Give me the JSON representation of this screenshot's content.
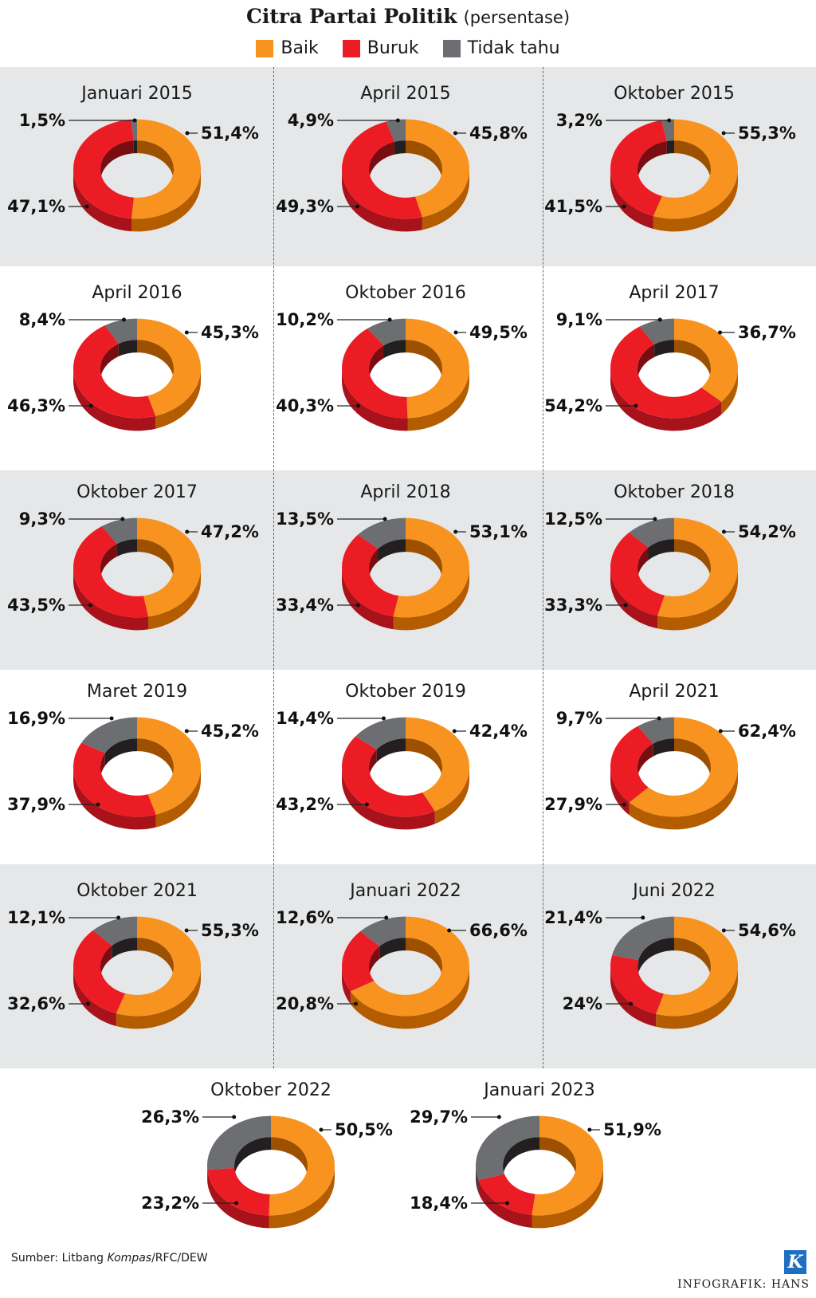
{
  "header": {
    "title": "Citra Partai Politik",
    "subtitle": "(persentase)"
  },
  "legend": [
    {
      "label": "Baik",
      "color": "#f7931e"
    },
    {
      "label": "Buruk",
      "color": "#ec1c24"
    },
    {
      "label": "Tidak tahu",
      "color": "#6d6e71"
    }
  ],
  "chart_data": [
    {
      "type": "pie",
      "title": "Januari 2015",
      "categories": [
        "Baik",
        "Buruk",
        "Tidak tahu"
      ],
      "values": [
        51.4,
        47.1,
        1.5
      ],
      "labels": [
        "51,4%",
        "47,1%",
        "1,5%"
      ]
    },
    {
      "type": "pie",
      "title": "April 2015",
      "categories": [
        "Baik",
        "Buruk",
        "Tidak tahu"
      ],
      "values": [
        45.8,
        49.3,
        4.9
      ],
      "labels": [
        "45,8%",
        "49,3%",
        "4,9%"
      ]
    },
    {
      "type": "pie",
      "title": "Oktober 2015",
      "categories": [
        "Baik",
        "Buruk",
        "Tidak tahu"
      ],
      "values": [
        55.3,
        41.5,
        3.2
      ],
      "labels": [
        "55,3%",
        "41,5%",
        "3,2%"
      ]
    },
    {
      "type": "pie",
      "title": "April 2016",
      "categories": [
        "Baik",
        "Buruk",
        "Tidak tahu"
      ],
      "values": [
        45.3,
        46.3,
        8.4
      ],
      "labels": [
        "45,3%",
        "46,3%",
        "8,4%"
      ]
    },
    {
      "type": "pie",
      "title": "Oktober 2016",
      "categories": [
        "Baik",
        "Buruk",
        "Tidak tahu"
      ],
      "values": [
        49.5,
        40.3,
        10.2
      ],
      "labels": [
        "49,5%",
        "40,3%",
        "10,2%"
      ]
    },
    {
      "type": "pie",
      "title": "April 2017",
      "categories": [
        "Baik",
        "Buruk",
        "Tidak tahu"
      ],
      "values": [
        36.7,
        54.2,
        9.1
      ],
      "labels": [
        "36,7%",
        "54,2%",
        "9,1%"
      ]
    },
    {
      "type": "pie",
      "title": "Oktober 2017",
      "categories": [
        "Baik",
        "Buruk",
        "Tidak tahu"
      ],
      "values": [
        47.2,
        43.5,
        9.3
      ],
      "labels": [
        "47,2%",
        "43,5%",
        "9,3%"
      ]
    },
    {
      "type": "pie",
      "title": "April 2018",
      "categories": [
        "Baik",
        "Buruk",
        "Tidak tahu"
      ],
      "values": [
        53.1,
        33.4,
        13.5
      ],
      "labels": [
        "53,1%",
        "33,4%",
        "13,5%"
      ]
    },
    {
      "type": "pie",
      "title": "Oktober 2018",
      "categories": [
        "Baik",
        "Buruk",
        "Tidak tahu"
      ],
      "values": [
        54.2,
        33.3,
        12.5
      ],
      "labels": [
        "54,2%",
        "33,3%",
        "12,5%"
      ]
    },
    {
      "type": "pie",
      "title": "Maret 2019",
      "categories": [
        "Baik",
        "Buruk",
        "Tidak tahu"
      ],
      "values": [
        45.2,
        37.9,
        16.9
      ],
      "labels": [
        "45,2%",
        "37,9%",
        "16,9%"
      ]
    },
    {
      "type": "pie",
      "title": "Oktober 2019",
      "categories": [
        "Baik",
        "Buruk",
        "Tidak tahu"
      ],
      "values": [
        42.4,
        43.2,
        14.4
      ],
      "labels": [
        "42,4%",
        "43,2%",
        "14,4%"
      ]
    },
    {
      "type": "pie",
      "title": "April 2021",
      "categories": [
        "Baik",
        "Buruk",
        "Tidak tahu"
      ],
      "values": [
        62.4,
        27.9,
        9.7
      ],
      "labels": [
        "62,4%",
        "27,9%",
        "9,7%"
      ]
    },
    {
      "type": "pie",
      "title": "Oktober 2021",
      "categories": [
        "Baik",
        "Buruk",
        "Tidak tahu"
      ],
      "values": [
        55.3,
        32.6,
        12.1
      ],
      "labels": [
        "55,3%",
        "32,6%",
        "12,1%"
      ]
    },
    {
      "type": "pie",
      "title": "Januari 2022",
      "categories": [
        "Baik",
        "Buruk",
        "Tidak tahu"
      ],
      "values": [
        66.6,
        20.8,
        12.6
      ],
      "labels": [
        "66,6%",
        "20,8%",
        "12,6%"
      ]
    },
    {
      "type": "pie",
      "title": "Juni 2022",
      "categories": [
        "Baik",
        "Buruk",
        "Tidak tahu"
      ],
      "values": [
        54.6,
        24,
        21.4
      ],
      "labels": [
        "54,6%",
        "24%",
        "21,4%"
      ]
    },
    {
      "type": "pie",
      "title": "Oktober 2022",
      "categories": [
        "Baik",
        "Buruk",
        "Tidak tahu"
      ],
      "values": [
        50.5,
        23.2,
        26.3
      ],
      "labels": [
        "50,5%",
        "23,2%",
        "26,3%"
      ]
    },
    {
      "type": "pie",
      "title": "Januari 2023",
      "categories": [
        "Baik",
        "Buruk",
        "Tidak tahu"
      ],
      "values": [
        51.9,
        18.4,
        29.7
      ],
      "labels": [
        "51,9%",
        "18,4%",
        "29,7%"
      ]
    }
  ],
  "footer": {
    "source_prefix": "Sumber: Litbang ",
    "source_italic": "Kompas",
    "source_suffix": "/RFC/DEW",
    "credit": "INFOGRAFIK: HANS",
    "logo_letter": "K"
  }
}
